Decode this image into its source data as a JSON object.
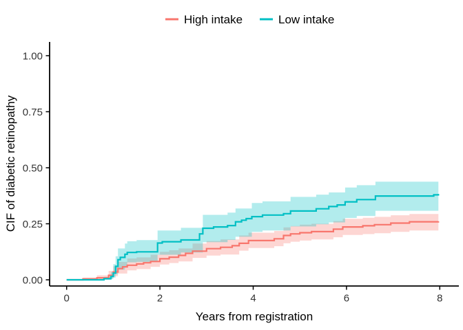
{
  "figure": {
    "background": "#FFFFFF"
  },
  "legend": {
    "position": "top",
    "items": [
      {
        "label": "High intake",
        "color": "#F8766D"
      },
      {
        "label": "Low intake",
        "color": "#00BFC4"
      }
    ]
  },
  "axes": {
    "line_color": "#000000",
    "tick_text_color": "#333333",
    "x": {
      "label": "Years from registration",
      "range": [
        0,
        8
      ],
      "ticks": [
        {
          "label": "0",
          "value": 0
        },
        {
          "label": "2",
          "value": 2
        },
        {
          "label": "4",
          "value": 4
        },
        {
          "label": "6",
          "value": 6
        },
        {
          "label": "8",
          "value": 8
        }
      ]
    },
    "y": {
      "label": "CIF of diabetic retinopathy",
      "range": [
        0,
        1
      ],
      "ticks": [
        {
          "label": "0.00",
          "value": 0
        },
        {
          "label": "0.25",
          "value": 0.25
        },
        {
          "label": "0.50",
          "value": 0.5
        },
        {
          "label": "0.75",
          "value": 0.75
        },
        {
          "label": "1.00",
          "value": 1
        }
      ]
    }
  },
  "chart_data": {
    "type": "line",
    "subtype": "step cumulative-incidence curves with shaded 95% confidence bands",
    "title": "",
    "xlabel": "Years from registration",
    "ylabel": "CIF of diabetic retinopathy",
    "xlim": [
      0,
      8
    ],
    "ylim": [
      0,
      1
    ],
    "grid": false,
    "legend_position": "top-center",
    "series": [
      {
        "name": "High intake",
        "color": "#F8766D",
        "band_opacity": 0.3,
        "steps": [
          [
            0,
            0
          ],
          [
            0.35,
            0.004
          ],
          [
            0.65,
            0.009
          ],
          [
            0.9,
            0.02
          ],
          [
            1.0,
            0.035
          ],
          [
            1.1,
            0.05
          ],
          [
            1.2,
            0.058
          ],
          [
            1.3,
            0.065
          ],
          [
            1.5,
            0.071
          ],
          [
            1.65,
            0.076
          ],
          [
            1.8,
            0.082
          ],
          [
            2.0,
            0.094
          ],
          [
            2.2,
            0.101
          ],
          [
            2.4,
            0.109
          ],
          [
            2.55,
            0.118
          ],
          [
            2.7,
            0.128
          ],
          [
            3.0,
            0.139
          ],
          [
            3.3,
            0.145
          ],
          [
            3.55,
            0.152
          ],
          [
            3.7,
            0.163
          ],
          [
            3.9,
            0.175
          ],
          [
            4.45,
            0.183
          ],
          [
            4.65,
            0.198
          ],
          [
            4.8,
            0.205
          ],
          [
            5.0,
            0.21
          ],
          [
            5.25,
            0.215
          ],
          [
            5.72,
            0.226
          ],
          [
            5.92,
            0.236
          ],
          [
            6.35,
            0.241
          ],
          [
            6.6,
            0.246
          ],
          [
            6.95,
            0.253
          ],
          [
            7.35,
            0.259
          ],
          [
            7.97,
            0.261
          ]
        ],
        "band": [
          [
            0,
            0,
            0
          ],
          [
            0.35,
            0,
            0.01
          ],
          [
            0.65,
            0.002,
            0.02
          ],
          [
            0.9,
            0.008,
            0.04
          ],
          [
            1.0,
            0.016,
            0.06
          ],
          [
            1.1,
            0.028,
            0.08
          ],
          [
            1.3,
            0.042,
            0.095
          ],
          [
            1.5,
            0.048,
            0.1
          ],
          [
            1.8,
            0.058,
            0.112
          ],
          [
            2.0,
            0.068,
            0.125
          ],
          [
            2.2,
            0.075,
            0.132
          ],
          [
            2.4,
            0.082,
            0.14
          ],
          [
            2.7,
            0.098,
            0.162
          ],
          [
            3.0,
            0.108,
            0.173
          ],
          [
            3.3,
            0.113,
            0.18
          ],
          [
            3.7,
            0.13,
            0.198
          ],
          [
            3.9,
            0.142,
            0.21
          ],
          [
            4.45,
            0.15,
            0.218
          ],
          [
            4.65,
            0.163,
            0.234
          ],
          [
            4.8,
            0.17,
            0.24
          ],
          [
            5.0,
            0.175,
            0.246
          ],
          [
            5.25,
            0.18,
            0.25
          ],
          [
            5.72,
            0.19,
            0.262
          ],
          [
            5.92,
            0.2,
            0.272
          ],
          [
            6.35,
            0.204,
            0.277
          ],
          [
            6.6,
            0.208,
            0.281
          ],
          [
            6.95,
            0.214,
            0.288
          ],
          [
            7.35,
            0.22,
            0.294
          ],
          [
            7.97,
            0.221,
            0.295
          ]
        ]
      },
      {
        "name": "Low intake",
        "color": "#00BFC4",
        "band_opacity": 0.3,
        "steps": [
          [
            0,
            0
          ],
          [
            0.8,
            0.005
          ],
          [
            0.95,
            0.015
          ],
          [
            1.0,
            0.03
          ],
          [
            1.05,
            0.06
          ],
          [
            1.1,
            0.09
          ],
          [
            1.15,
            0.1
          ],
          [
            1.25,
            0.114
          ],
          [
            1.3,
            0.122
          ],
          [
            1.5,
            0.125
          ],
          [
            1.95,
            0.164
          ],
          [
            2.05,
            0.17
          ],
          [
            2.45,
            0.178
          ],
          [
            2.85,
            0.205
          ],
          [
            2.92,
            0.23
          ],
          [
            3.15,
            0.236
          ],
          [
            3.45,
            0.242
          ],
          [
            3.62,
            0.259
          ],
          [
            3.75,
            0.266
          ],
          [
            3.85,
            0.273
          ],
          [
            3.97,
            0.282
          ],
          [
            4.2,
            0.289
          ],
          [
            4.65,
            0.295
          ],
          [
            4.8,
            0.307
          ],
          [
            5.35,
            0.317
          ],
          [
            5.62,
            0.327
          ],
          [
            5.8,
            0.334
          ],
          [
            5.97,
            0.348
          ],
          [
            6.22,
            0.358
          ],
          [
            6.62,
            0.374
          ],
          [
            7.87,
            0.379
          ],
          [
            7.97,
            0.383
          ]
        ],
        "band": [
          [
            0,
            0,
            0
          ],
          [
            0.8,
            0,
            0.013
          ],
          [
            0.95,
            0.003,
            0.035
          ],
          [
            1.0,
            0.01,
            0.07
          ],
          [
            1.05,
            0.025,
            0.105
          ],
          [
            1.1,
            0.045,
            0.14
          ],
          [
            1.25,
            0.06,
            0.162
          ],
          [
            1.3,
            0.078,
            0.172
          ],
          [
            1.5,
            0.08,
            0.177
          ],
          [
            1.95,
            0.112,
            0.22
          ],
          [
            2.45,
            0.122,
            0.232
          ],
          [
            2.92,
            0.168,
            0.29
          ],
          [
            3.45,
            0.178,
            0.3
          ],
          [
            3.62,
            0.192,
            0.318
          ],
          [
            3.97,
            0.214,
            0.343
          ],
          [
            4.2,
            0.22,
            0.35
          ],
          [
            4.8,
            0.238,
            0.37
          ],
          [
            5.35,
            0.248,
            0.38
          ],
          [
            5.62,
            0.256,
            0.39
          ],
          [
            5.97,
            0.276,
            0.412
          ],
          [
            6.22,
            0.285,
            0.422
          ],
          [
            6.62,
            0.308,
            0.438
          ],
          [
            7.97,
            0.313,
            0.443
          ]
        ]
      }
    ]
  }
}
